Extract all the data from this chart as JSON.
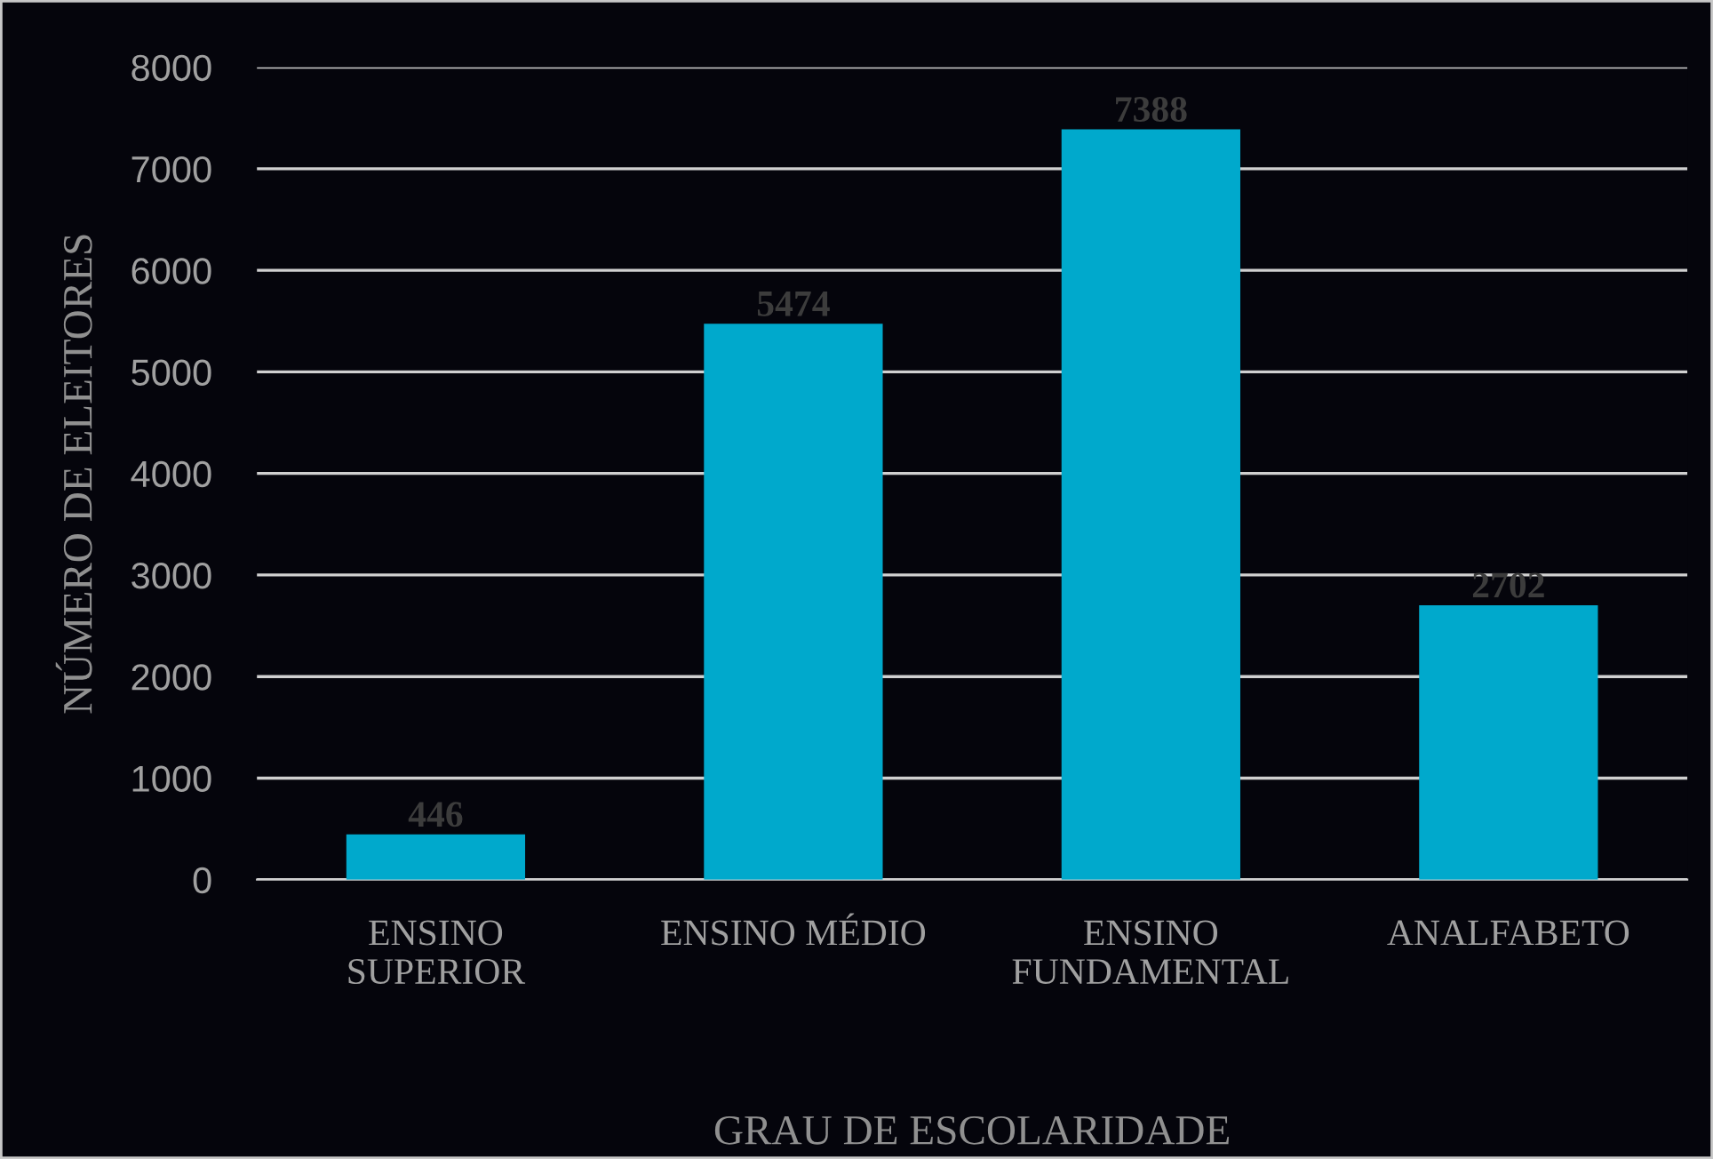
{
  "chart_data": {
    "type": "bar",
    "xlabel": "GRAU DE ESCOLARIDADE",
    "ylabel": "NÚMERO DE ELEITORES",
    "categories": [
      "ENSINO\nSUPERIOR",
      "ENSINO MÉDIO",
      "ENSINO\nFUNDAMENTAL",
      "ANALFABETO"
    ],
    "values": [
      446,
      5474,
      7388,
      2702
    ],
    "color": "#00a9cc",
    "ylim": [
      0,
      8000
    ],
    "yticks": [
      0,
      1000,
      2000,
      3000,
      4000,
      5000,
      6000,
      7000,
      8000
    ],
    "grid": "y",
    "data_labels": true
  }
}
